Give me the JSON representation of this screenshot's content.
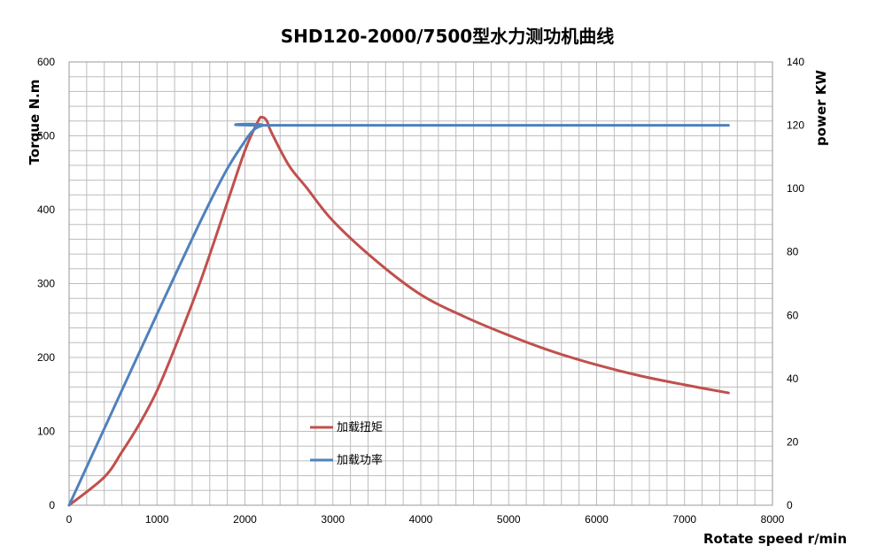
{
  "chart_data": {
    "type": "line",
    "title": "SHD120-2000/7500型水力测功机曲线",
    "xlabel": "Rotate speed r/min",
    "ylabel_left": "Torque N.m",
    "ylabel_right": "power KW",
    "xlim": [
      0,
      8000
    ],
    "ylim_left": [
      0,
      600
    ],
    "ylim_right": [
      0,
      140
    ],
    "x_ticks": [
      0,
      1000,
      2000,
      3000,
      4000,
      5000,
      6000,
      7000,
      8000
    ],
    "y_left_ticks": [
      0,
      100,
      200,
      300,
      400,
      500,
      600
    ],
    "y_right_ticks": [
      0,
      20,
      40,
      60,
      80,
      100,
      120,
      140
    ],
    "grid": true,
    "legend_position": "center-lower",
    "series": [
      {
        "name": "加载扭矩",
        "axis": "left",
        "color": "#c0504d",
        "x": [
          0,
          400,
          600,
          800,
          1000,
          1200,
          1500,
          1800,
          2000,
          2150,
          2200,
          2250,
          2300,
          2500,
          2700,
          3000,
          3500,
          4000,
          4500,
          5000,
          5500,
          6000,
          6500,
          7000,
          7500
        ],
        "y": [
          0,
          38,
          72,
          110,
          155,
          212,
          305,
          410,
          480,
          520,
          525,
          520,
          505,
          460,
          430,
          385,
          330,
          285,
          255,
          230,
          208,
          190,
          175,
          163,
          152
        ]
      },
      {
        "name": "加载功率",
        "axis": "right",
        "color": "#4f81bd",
        "x": [
          0,
          1500,
          2000,
          2200,
          2300,
          7500
        ],
        "y": [
          0,
          90,
          115,
          120,
          120,
          120
        ]
      }
    ]
  }
}
